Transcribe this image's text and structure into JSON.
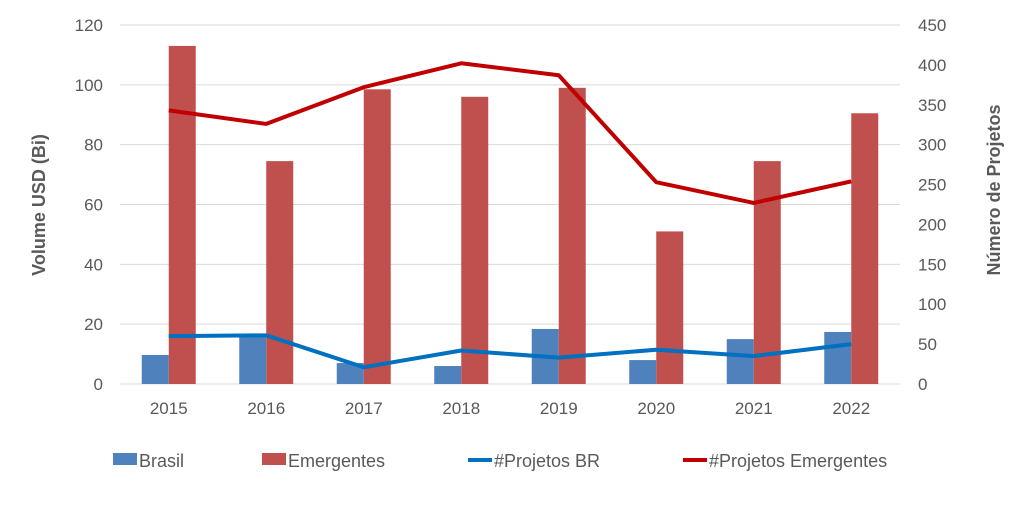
{
  "chart_data": {
    "type": "bar",
    "title": "",
    "categories": [
      "2015",
      "2016",
      "2017",
      "2018",
      "2019",
      "2020",
      "2021",
      "2022"
    ],
    "xlabel": "",
    "ylabel": "Volume USD (Bi)",
    "y2label": "Número de Projetos",
    "ylim": [
      0,
      120
    ],
    "y2lim": [
      0,
      450
    ],
    "yticks": [
      "0",
      "20",
      "40",
      "60",
      "80",
      "100",
      "120"
    ],
    "y2ticks": [
      "0",
      "50",
      "100",
      "150",
      "200",
      "250",
      "300",
      "350",
      "400",
      "450"
    ],
    "grid": true,
    "legend_position": "bottom",
    "series": [
      {
        "name": "Brasil",
        "kind": "bar",
        "axis": "left",
        "color": "#4F81BD",
        "values": [
          9.7,
          16,
          7,
          6,
          18.4,
          8,
          15,
          17.4
        ]
      },
      {
        "name": "Emergentes",
        "kind": "bar",
        "axis": "left",
        "color": "#C0504D",
        "values": [
          113,
          74.5,
          98.5,
          96,
          99,
          51,
          74.5,
          90.5
        ]
      },
      {
        "name": "#Projetos BR",
        "kind": "line",
        "axis": "right",
        "color": "#0070C0",
        "values": [
          60,
          61,
          21,
          42,
          33,
          43,
          35,
          50
        ]
      },
      {
        "name": "#Projetos Emergentes",
        "kind": "line",
        "axis": "right",
        "color": "#C00000",
        "values": [
          343,
          326,
          372,
          402,
          387,
          253,
          227,
          254
        ]
      }
    ]
  }
}
